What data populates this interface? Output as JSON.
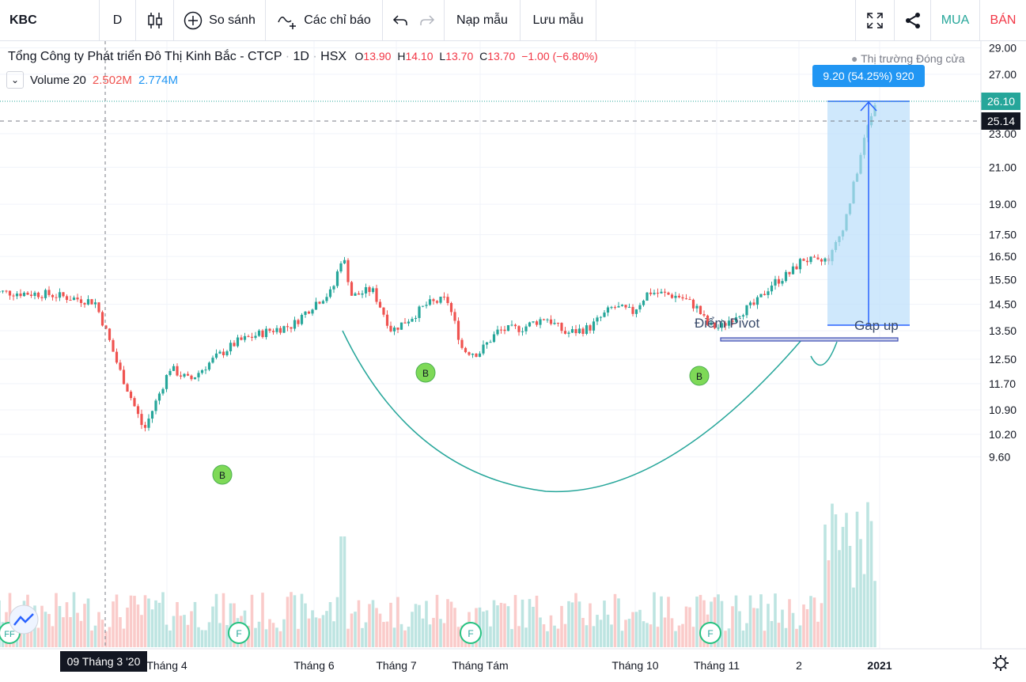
{
  "toolbar": {
    "symbol": "KBC",
    "interval": "D",
    "compare_label": "So sánh",
    "indicators_label": "Các chỉ báo",
    "load_template_label": "Nạp mẫu",
    "save_template_label": "Lưu mẫu",
    "buy_label": "MUA",
    "sell_label": "BÁN"
  },
  "legend": {
    "title": "Tổng Công ty Phát triển Đô Thị Kinh Bắc - CTCP",
    "interval": "1D",
    "exchange": "HSX",
    "open": "13.90",
    "high": "14.10",
    "low": "13.70",
    "close": "13.70",
    "change": "−1.00 (−6.80%)",
    "volume_label": "Volume 20",
    "volume_value": "2.502M",
    "volume_ma": "2.774M"
  },
  "market_status": "Thị trường Đóng cửa",
  "annotations": {
    "measure_label": "9.20 (54.25%) 920",
    "pivot_label": "Điểm Pivot",
    "gap_label": "Gap up",
    "event_b": "B",
    "event_f": "F",
    "event_ff": "FF"
  },
  "price_labels": {
    "current_high": "26.10",
    "current_price": "25.14"
  },
  "crosshair_date": "09 Tháng 3 '20",
  "colors": {
    "up": "#26a69a",
    "down": "#ef5350",
    "accent": "#2962ff",
    "buy": "#26a69a",
    "sell": "#f23645",
    "measure_fill": "#bbdefb",
    "measure_line": "#2962ff",
    "pivot_line": "#3f51b5"
  },
  "chart_data": {
    "type": "candlestick",
    "y_scale": "log",
    "ylim": [
      9.2,
      30.0
    ],
    "y_ticks": [
      "29.00",
      "27.00",
      "23.00",
      "21.00",
      "19.00",
      "17.50",
      "16.50",
      "15.50",
      "14.50",
      "13.50",
      "12.50",
      "11.70",
      "10.90",
      "10.20",
      "9.60"
    ],
    "x_ticks": [
      "Tháng 4",
      "Tháng 6",
      "Tháng 7",
      "Tháng Tám",
      "Tháng 10",
      "Tháng 11",
      "2",
      "2021"
    ],
    "last_close": 25.14,
    "last_high": 26.1,
    "series": [
      {
        "name": "Volume 20",
        "type": "volume",
        "ma": 2.774,
        "last": 2.502,
        "unit": "M"
      }
    ]
  }
}
